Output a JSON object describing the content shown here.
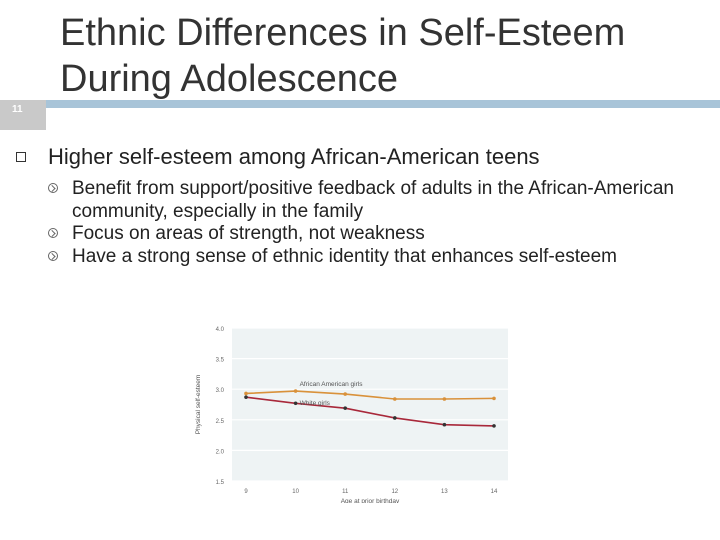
{
  "slide": {
    "number": "11"
  },
  "title": "Ethnic Differences in Self-Esteem During Adolescence",
  "bullet": "Higher self-esteem among African-American teens",
  "subbullets": [
    "Benefit from support/positive feedback of adults in the African-American community, especially in the family",
    "Focus on areas of strength, not weakness",
    "Have a strong sense of ethnic identity that enhances self-esteem"
  ],
  "colors": {
    "african_american": "#d9913a",
    "white": "#a8283a",
    "rule": "#a8c4d8"
  },
  "chart_data": {
    "type": "line",
    "xlabel": "Age at prior birthday",
    "ylabel": "Physical self-esteem",
    "x": [
      9,
      10,
      11,
      12,
      13,
      14
    ],
    "ylim": [
      1.5,
      4.0
    ],
    "yticks": [
      "1.5",
      "2.0",
      "2.5",
      "3.0",
      "3.5",
      "4.0"
    ],
    "xticks": [
      "9",
      "10",
      "11",
      "12",
      "13",
      "14"
    ],
    "series": [
      {
        "name": "African American girls",
        "values": [
          2.93,
          2.97,
          2.92,
          2.84,
          2.84,
          2.85
        ]
      },
      {
        "name": "White girls",
        "values": [
          2.87,
          2.77,
          2.69,
          2.53,
          2.42,
          2.4
        ]
      }
    ],
    "grid": true
  }
}
